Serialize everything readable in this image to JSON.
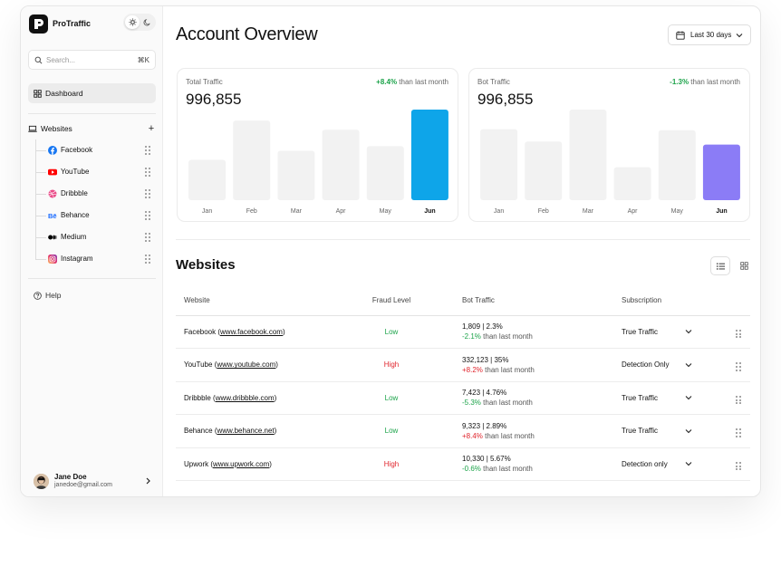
{
  "brand": {
    "name": "ProTraffic"
  },
  "search": {
    "placeholder": "Search...",
    "shortcut": "⌘K"
  },
  "nav": {
    "dashboard_label": "Dashboard",
    "websites_label": "Websites",
    "help_label": "Help"
  },
  "sidebar_sites": [
    {
      "label": "Facebook",
      "icon": "facebook-icon",
      "color": "#1877f2"
    },
    {
      "label": "YouTube",
      "icon": "youtube-icon",
      "color": "#ff0000"
    },
    {
      "label": "Dribbble",
      "icon": "dribbble-icon",
      "color": "#ea4c89"
    },
    {
      "label": "Behance",
      "icon": "behance-icon",
      "color": "#1769ff"
    },
    {
      "label": "Medium",
      "icon": "medium-icon",
      "color": "#000000"
    },
    {
      "label": "Instagram",
      "icon": "instagram-icon",
      "color": "#d6249f"
    }
  ],
  "user": {
    "name": "Jane Doe",
    "email": "janedoe@gmail.com"
  },
  "header": {
    "title": "Account Overview",
    "date_range": "Last 30 days"
  },
  "cards": [
    {
      "label": "Total Traffic",
      "value": "996,855",
      "delta": "+8.4%",
      "delta_text": "than last month",
      "delta_color": "#1ca34a"
    },
    {
      "label": "Bot Traffic",
      "value": "996,855",
      "delta": "-1.3%",
      "delta_text": "than last month",
      "delta_color": "#1ca34a"
    }
  ],
  "chart_data": [
    {
      "type": "bar",
      "categories": [
        "Jan",
        "Feb",
        "Mar",
        "Apr",
        "May",
        "Jun"
      ],
      "values": [
        44,
        87,
        54,
        77,
        59,
        99
      ],
      "highlight_index": 5,
      "highlight_color": "#0ea5e9",
      "bar_color": "#f2f2f2"
    },
    {
      "type": "bar",
      "categories": [
        "Jan",
        "Feb",
        "Mar",
        "Apr",
        "May",
        "Jun"
      ],
      "values": [
        69,
        57,
        88,
        32,
        68,
        54
      ],
      "highlight_index": 5,
      "highlight_color": "#8b7cf6",
      "bar_color": "#f2f2f2"
    }
  ],
  "websites_section": {
    "title": "Websites"
  },
  "table": {
    "headers": [
      "Website",
      "Fraud Level",
      "Bot Traffic",
      "Subscription"
    ],
    "rows": [
      {
        "name": "Facebook",
        "url": "www.facebook.com",
        "fraud": "Low",
        "bot_value": "1,809 | 2.3%",
        "bot_delta": "-2.1%",
        "bot_delta_text": "than last month",
        "subscription": "True Traffic"
      },
      {
        "name": "YouTube",
        "url": "www.youtube.com",
        "fraud": "High",
        "bot_value": "332,123 | 35%",
        "bot_delta": "+8.2%",
        "bot_delta_text": "than last month",
        "subscription": "Detection Only"
      },
      {
        "name": "Dribbble",
        "url": "www.dribbble.com",
        "fraud": "Low",
        "bot_value": "7,423 | 4.76%",
        "bot_delta": "-5.3%",
        "bot_delta_text": "than last month",
        "subscription": "True Traffic"
      },
      {
        "name": "Behance",
        "url": "www.behance.net",
        "fraud": "Low",
        "bot_value": "9,323 | 2.89%",
        "bot_delta": "+8.4%",
        "bot_delta_text": "than last month",
        "subscription": "True Traffic"
      },
      {
        "name": "Upwork",
        "url": "www.upwork.com",
        "fraud": "High",
        "bot_value": "10,330 | 5.67%",
        "bot_delta": "-0.6%",
        "bot_delta_text": "than last month",
        "subscription": "Detection only"
      }
    ]
  }
}
